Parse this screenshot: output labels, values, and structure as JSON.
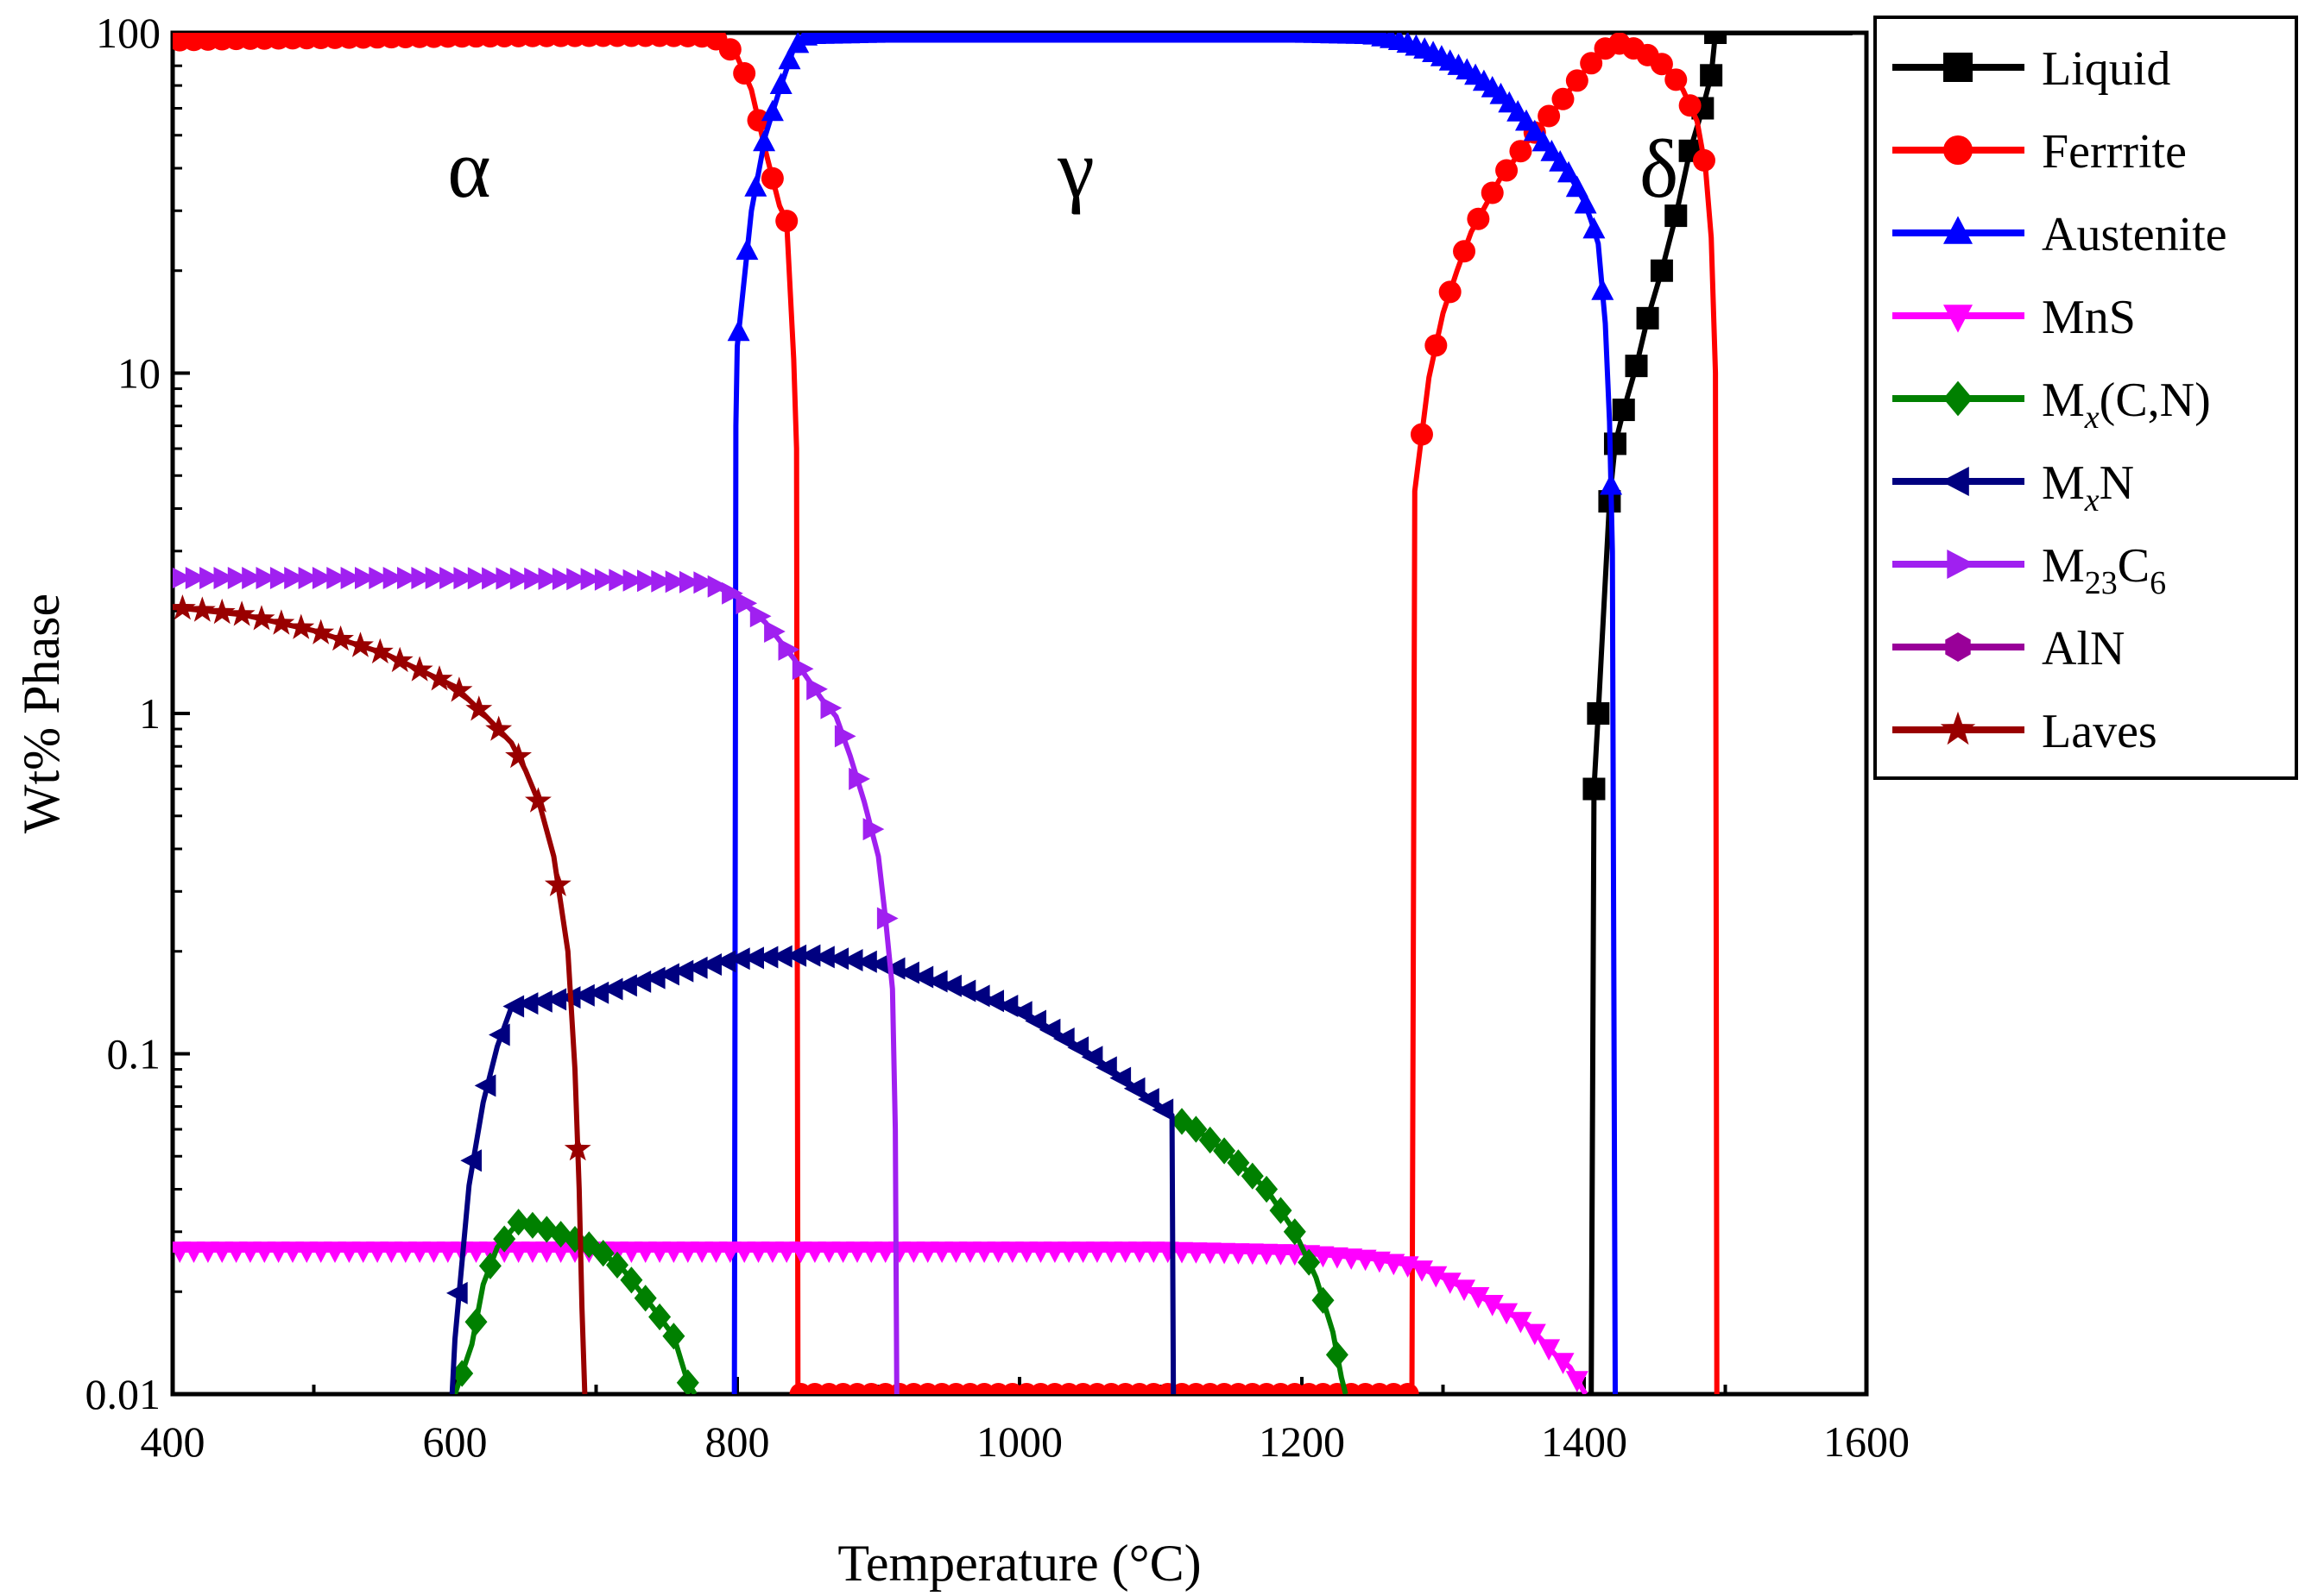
{
  "chart_data": {
    "type": "line",
    "title": "",
    "xlabel": "Temperature (°C)",
    "ylabel": "Wt% Phase",
    "xscale": "linear",
    "yscale": "log",
    "xlim": [
      400,
      1600
    ],
    "ylim": [
      0.01,
      100
    ],
    "xticks": [
      400,
      600,
      800,
      1000,
      1200,
      1400,
      1600
    ],
    "xtick_labels": [
      "400",
      "600",
      "800",
      "1000",
      "1200",
      "1400",
      "1600"
    ],
    "yticks": [
      0.01,
      0.1,
      1,
      10,
      100
    ],
    "ytick_labels": [
      "0.01",
      "0.1",
      "1",
      "10",
      "100"
    ],
    "legend_position": "right, outside plot",
    "annotations": [
      {
        "text": "α",
        "x": 610,
        "y": 33
      },
      {
        "text": "γ",
        "x": 1040,
        "y": 33
      },
      {
        "text": "δ",
        "x": 1453,
        "y": 33
      }
    ],
    "series": [
      {
        "name": "Liquid",
        "label_main": "Liquid",
        "label_sub": "",
        "label_tail": "",
        "color": "#000000",
        "marker": "square",
        "x": [
          1405,
          1407,
          1410,
          1418,
          1422,
          1428,
          1437,
          1445,
          1455,
          1465,
          1475,
          1484,
          1490,
          1493,
          1497,
          1520,
          1560,
          1590
        ],
        "y": [
          0.01,
          0.6,
          1.0,
          4.2,
          6.2,
          7.8,
          10.5,
          14.5,
          20,
          29,
          45,
          60,
          75,
          100,
          100,
          100,
          100,
          100
        ],
        "markers": [
          0.6,
          1.0,
          4.2,
          6.2,
          7.8,
          10.5,
          14.5,
          20,
          29,
          45,
          60,
          75,
          100
        ]
      },
      {
        "name": "Ferrrite",
        "label_main": "Ferrrite",
        "label_sub": "",
        "label_tail": "",
        "color": "#ff0000",
        "marker": "circle",
        "x": [
          400,
          450,
          500,
          550,
          600,
          650,
          700,
          750,
          780,
          790,
          800,
          810,
          820,
          830,
          835,
          840,
          842,
          843,
          1278,
          1280,
          1290,
          1300,
          1310,
          1320,
          1330,
          1340,
          1350,
          1360,
          1370,
          1380,
          1390,
          1400,
          1410,
          1420,
          1430,
          1440,
          1450,
          1460,
          1470,
          1480,
          1486,
          1490,
          1493,
          1494
        ],
        "y": [
          95,
          96,
          96.5,
          97,
          97.5,
          97.8,
          98,
          98,
          97.5,
          94,
          85,
          68,
          45,
          31,
          28,
          11,
          6,
          0.01,
          0.01,
          4.5,
          9.7,
          15,
          20,
          26,
          31,
          37,
          42,
          48,
          54,
          60,
          68,
          77,
          86,
          94,
          92,
          88,
          84,
          78,
          68,
          55,
          40,
          25,
          10,
          0.01
        ]
      },
      {
        "name": "Austenite",
        "label_main": "Austenite",
        "label_sub": "",
        "label_tail": "",
        "color": "#0000ff",
        "marker": "triangle-up",
        "x": [
          798,
          799,
          800,
          810,
          820,
          830,
          840,
          850,
          900,
          1000,
          1100,
          1200,
          1250,
          1260,
          1270,
          1280,
          1290,
          1300,
          1310,
          1320,
          1330,
          1340,
          1350,
          1360,
          1370,
          1380,
          1390,
          1400,
          1405,
          1410,
          1415,
          1418,
          1420,
          1422
        ],
        "y": [
          0.01,
          7,
          12,
          30,
          50,
          68,
          90,
          98,
          99,
          99,
          99,
          99,
          98,
          96,
          94,
          91,
          88,
          84,
          80,
          76,
          71,
          66,
          60,
          54,
          48,
          43,
          38,
          32,
          28,
          24,
          14,
          7.2,
          3,
          0.01
        ]
      },
      {
        "name": "MnS",
        "label_main": "MnS",
        "label_sub": "",
        "label_tail": "",
        "color": "#ff00ff",
        "marker": "triangle-down",
        "x": [
          400,
          500,
          600,
          700,
          800,
          900,
          1000,
          1100,
          1200,
          1250,
          1280,
          1300,
          1320,
          1340,
          1360,
          1380,
          1390,
          1398,
          1401
        ],
        "y": [
          0.0265,
          0.0265,
          0.0265,
          0.0265,
          0.0265,
          0.0265,
          0.0265,
          0.0265,
          0.026,
          0.025,
          0.0238,
          0.022,
          0.02,
          0.018,
          0.016,
          0.013,
          0.012,
          0.0105,
          0.01
        ]
      },
      {
        "name": "Mx(C,N)",
        "label_main": "M",
        "label_sub": "x",
        "label_tail": "(C,N)",
        "color": "#008000",
        "marker": "diamond",
        "x": [
          600,
          612,
          620,
          630,
          645,
          660,
          680,
          700,
          720,
          740,
          755,
          765,
          770,
          1110,
          1125,
          1150,
          1175,
          1195,
          1210,
          1222,
          1228,
          1231
        ],
        "y": [
          0.01,
          0.014,
          0.021,
          0.027,
          0.032,
          0.031,
          0.029,
          0.027,
          0.023,
          0.018,
          0.0148,
          0.0108,
          0.01,
          0.065,
          0.06,
          0.05,
          0.04,
          0.03,
          0.022,
          0.0152,
          0.0112,
          0.01
        ],
        "segments": [
          [
            0,
            12
          ],
          [
            13,
            21
          ]
        ]
      },
      {
        "name": "MxN",
        "label_main": "M",
        "label_sub": "x",
        "label_tail": "N",
        "color": "#000080",
        "marker": "triangle-left",
        "x": [
          598,
          600,
          610,
          620,
          630,
          640,
          650,
          700,
          750,
          800,
          850,
          900,
          950,
          1000,
          1050,
          1100,
          1108,
          1109
        ],
        "y": [
          0.01,
          0.0145,
          0.041,
          0.072,
          0.105,
          0.137,
          0.14,
          0.15,
          0.17,
          0.19,
          0.195,
          0.185,
          0.16,
          0.135,
          0.1,
          0.07,
          0.066,
          0.01
        ]
      },
      {
        "name": "M23C6",
        "label_main": "M",
        "label_sub": "23",
        "label_tail": "C",
        "label_sub2": "6",
        "color": "#a020f0",
        "marker": "triangle-right",
        "x": [
          400,
          500,
          600,
          700,
          780,
          800,
          820,
          840,
          860,
          870,
          880,
          890,
          900,
          905,
          910,
          912,
          913
        ],
        "y": [
          2.5,
          2.5,
          2.5,
          2.48,
          2.42,
          2.2,
          1.85,
          1.45,
          1.1,
          0.98,
          0.75,
          0.55,
          0.38,
          0.25,
          0.155,
          0.06,
          0.01
        ]
      },
      {
        "name": "AlN",
        "label_main": "AlN",
        "label_sub": "",
        "label_tail": "",
        "color": "#990099",
        "marker": "hexagon",
        "x": [],
        "y": []
      },
      {
        "name": "Laves",
        "label_main": "Laves",
        "label_sub": "",
        "label_tail": "",
        "color": "#990000",
        "marker": "star",
        "x": [
          400,
          450,
          500,
          550,
          600,
          620,
          640,
          650,
          660,
          670,
          680,
          685,
          688,
          690,
          692
        ],
        "y": [
          2.05,
          1.95,
          1.75,
          1.5,
          1.2,
          1.0,
          0.82,
          0.68,
          0.54,
          0.38,
          0.2,
          0.09,
          0.04,
          0.018,
          0.01
        ]
      }
    ]
  }
}
